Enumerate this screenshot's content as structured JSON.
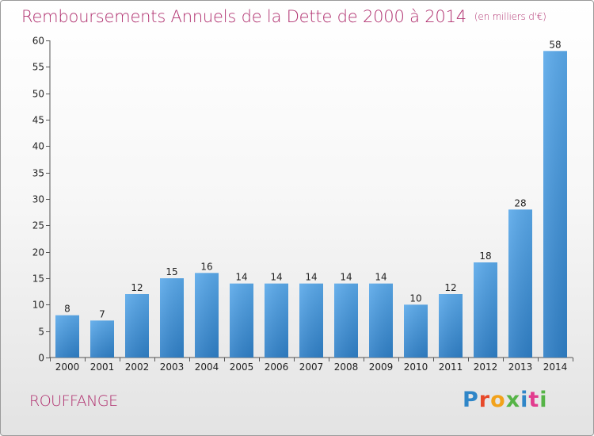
{
  "header": {
    "title": "Remboursements Annuels de la Dette de 2000 à 2014",
    "unit": "(en milliers d'€)"
  },
  "footer": {
    "commune": "ROUFFANGE",
    "logo": "Proxiti"
  },
  "colors": {
    "title": "#b0306f",
    "bar": "#3f90d8",
    "axis": "#555555"
  },
  "chart_data": {
    "type": "bar",
    "title": "Remboursements Annuels de la Dette de 2000 à 2014",
    "subtitle": "(en milliers d'€)",
    "categories": [
      "2000",
      "2001",
      "2002",
      "2003",
      "2004",
      "2005",
      "2006",
      "2007",
      "2008",
      "2009",
      "2010",
      "2011",
      "2012",
      "2013",
      "2014"
    ],
    "values": [
      8,
      7,
      12,
      15,
      16,
      14,
      14,
      14,
      14,
      14,
      10,
      12,
      18,
      28,
      58
    ],
    "xlabel": "",
    "ylabel": "",
    "ylim": [
      0,
      60
    ],
    "yticks": [
      0,
      5,
      10,
      15,
      20,
      25,
      30,
      35,
      40,
      45,
      50,
      55,
      60
    ],
    "grid": false,
    "data_labels": true
  }
}
